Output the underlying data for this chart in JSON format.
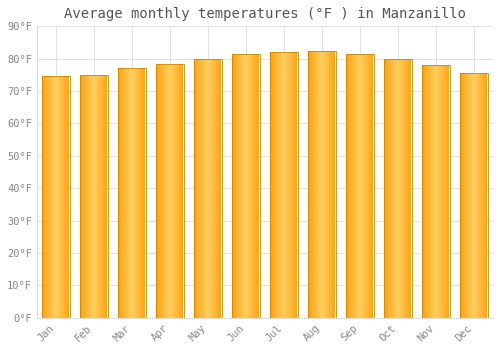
{
  "months": [
    "Jan",
    "Feb",
    "Mar",
    "Apr",
    "May",
    "Jun",
    "Jul",
    "Aug",
    "Sep",
    "Oct",
    "Nov",
    "Dec"
  ],
  "values": [
    74.5,
    75.0,
    77.0,
    78.5,
    80.0,
    81.5,
    82.0,
    82.5,
    81.5,
    80.0,
    78.0,
    75.5
  ],
  "bar_color_center": "#FFD060",
  "bar_color_edge": "#FFA010",
  "bar_border_color": "#CC8800",
  "title": "Average monthly temperatures (°F ) in Manzanillo",
  "ylim": [
    0,
    90
  ],
  "ytick_step": 10,
  "background_color": "#FFFFFF",
  "grid_color": "#DDDDDD",
  "title_fontsize": 10,
  "tick_fontsize": 7.5,
  "tick_color": "#888888",
  "title_color": "#555555"
}
